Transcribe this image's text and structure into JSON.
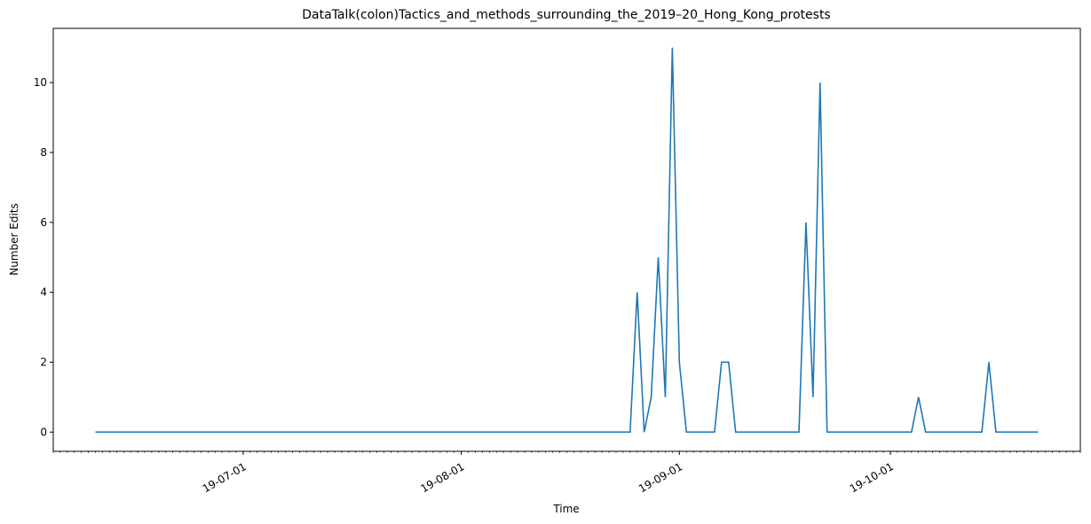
{
  "chart_data": {
    "type": "line",
    "title": "DataTalk(colon)Tactics_and_methods_surrounding_the_2019–20_Hong_Kong_protests",
    "x_label": "Time",
    "y_label": "Number Edits",
    "x": [
      "2019-06-10",
      "2019-08-25",
      "2019-08-26",
      "2019-08-27",
      "2019-08-28",
      "2019-08-29",
      "2019-08-30",
      "2019-08-31",
      "2019-09-01",
      "2019-09-02",
      "2019-09-06",
      "2019-09-07",
      "2019-09-08",
      "2019-09-09",
      "2019-09-18",
      "2019-09-19",
      "2019-09-20",
      "2019-09-21",
      "2019-09-22",
      "2019-10-04",
      "2019-10-05",
      "2019-10-06",
      "2019-10-14",
      "2019-10-15",
      "2019-10-16",
      "2019-10-22"
    ],
    "series": [
      {
        "name": "Number Edits",
        "color": "#1f77b4",
        "values": [
          0,
          0,
          4,
          0,
          1,
          5,
          1,
          11,
          2,
          0,
          0,
          2,
          2,
          0,
          0,
          6,
          1,
          10,
          0,
          0,
          1,
          0,
          0,
          2,
          0,
          0
        ]
      }
    ],
    "xlim": [
      "2019-06-04",
      "2019-10-28"
    ],
    "xticks": [
      {
        "value": "2019-07-01",
        "label": "19-07-01"
      },
      {
        "value": "2019-08-01",
        "label": "19-08-01"
      },
      {
        "value": "2019-09-01",
        "label": "19-09-01"
      },
      {
        "value": "2019-10-01",
        "label": "19-10-01"
      }
    ],
    "ylim": [
      -0.55,
      11.55
    ],
    "yticks": [
      0,
      2,
      4,
      6,
      8,
      10
    ]
  }
}
